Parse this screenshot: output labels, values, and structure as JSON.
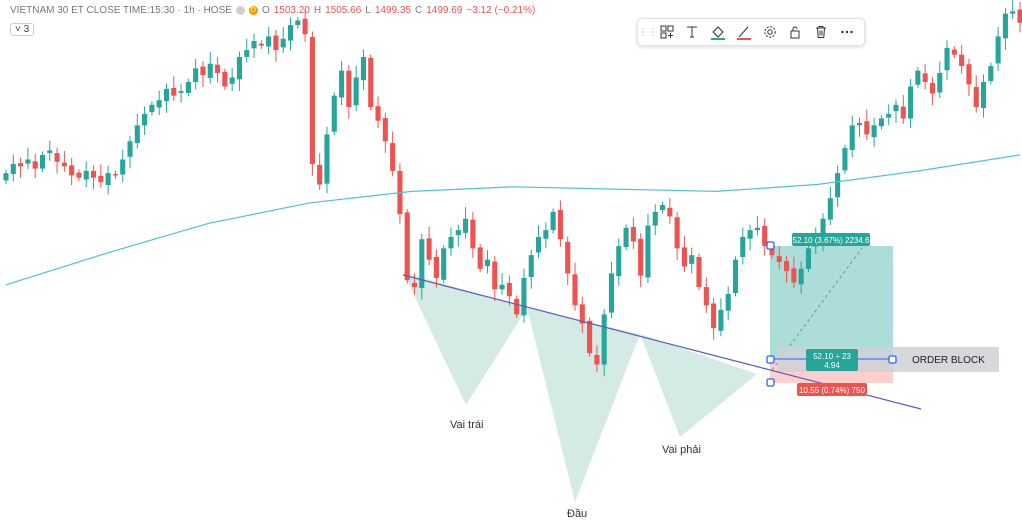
{
  "legend": {
    "symbol": "VIETNAM 30 ET CLOSE TIME:15:30 · 1h · HOSE",
    "badge": "D",
    "o_key": "O",
    "o_val": "1503.20",
    "h_key": "H",
    "h_val": "1505.66",
    "l_key": "L",
    "l_val": "1499.35",
    "c_key": "C",
    "c_val": "1499.69",
    "change": "−3.12 (−0.21%)"
  },
  "collapse_label": "3",
  "toolbar": {
    "icons": [
      "grip-icon",
      "template-icon",
      "text-icon",
      "fill-color-icon",
      "line-color-icon",
      "settings-icon",
      "lock-icon",
      "trash-icon",
      "more-icon"
    ]
  },
  "annotations": {
    "left_shoulder": "Vai trái",
    "head": "Đầu",
    "right_shoulder": "Vai phải",
    "order_block": "ORDER BLOCK",
    "target": "52.10 (3.67%) 2234.6",
    "entry_line1": "52.10 ÷ 23",
    "entry_line2": "4.94",
    "stop": "10.55 (0.74%) 750"
  },
  "colors": {
    "up": "#26a69a",
    "down": "#ef5350",
    "ma": "#4fc3d4",
    "neckline": "#5c5cbe",
    "pattern_fill": "#c5e3dc"
  },
  "chart_data": {
    "type": "candlestick",
    "title": "VIETNAM 30 ET CLOSE TIME:15:30 · 1h · HOSE",
    "ohlc_last": {
      "open": 1503.2,
      "high": 1505.66,
      "low": 1499.35,
      "close": 1499.69,
      "change": -3.12,
      "change_pct": -0.21
    },
    "y_range": [
      1420,
      1650
    ],
    "series": [
      {
        "name": "price",
        "values": [
          1574,
          1578,
          1577,
          1580,
          1576,
          1582,
          1584,
          1579,
          1577,
          1573,
          1572,
          1575,
          1572,
          1570,
          1574,
          1573,
          1580,
          1588,
          1595,
          1600,
          1604,
          1606,
          1611,
          1608,
          1610,
          1614,
          1620,
          1617,
          1622,
          1618,
          1612,
          1616,
          1625,
          1628,
          1632,
          1630,
          1634,
          1628,
          1633,
          1639,
          1641,
          1635,
          1578,
          1569,
          1591,
          1608,
          1619,
          1603,
          1616,
          1625,
          1603,
          1597,
          1588,
          1575,
          1556,
          1527,
          1524,
          1545,
          1536,
          1528,
          1541,
          1546,
          1549,
          1554,
          1541,
          1532,
          1536,
          1523,
          1525,
          1520,
          1512,
          1528,
          1538,
          1546,
          1549,
          1557,
          1545,
          1530,
          1516,
          1508,
          1495,
          1490,
          1512,
          1530,
          1542,
          1550,
          1544,
          1529,
          1551,
          1557,
          1560,
          1555,
          1541,
          1533,
          1538,
          1524,
          1516,
          1506,
          1514,
          1521,
          1536,
          1546,
          1549,
          1550,
          1542,
          1538,
          1535,
          1531,
          1526,
          1532,
          1541,
          1546,
          1554,
          1563,
          1574,
          1585,
          1595,
          1596,
          1591,
          1595,
          1598,
          1600,
          1604,
          1598,
          1612,
          1619,
          1614,
          1609,
          1618,
          1629,
          1626,
          1621,
          1613,
          1603,
          1614,
          1621,
          1634,
          1644,
          1645,
          1640
        ]
      },
      {
        "name": "MA",
        "values": [
          1525,
          1539,
          1552,
          1561,
          1566,
          1568,
          1567,
          1566,
          1569,
          1575,
          1582
        ]
      }
    ],
    "annotations": [
      "Vai trái",
      "Đầu",
      "Vai phải",
      "ORDER BLOCK"
    ],
    "position": {
      "target": "52.10 (3.67%) 2234.6",
      "entry": "52.10 ÷ 23 / 4.94",
      "stop": "10.55 (0.74%) 750"
    }
  }
}
